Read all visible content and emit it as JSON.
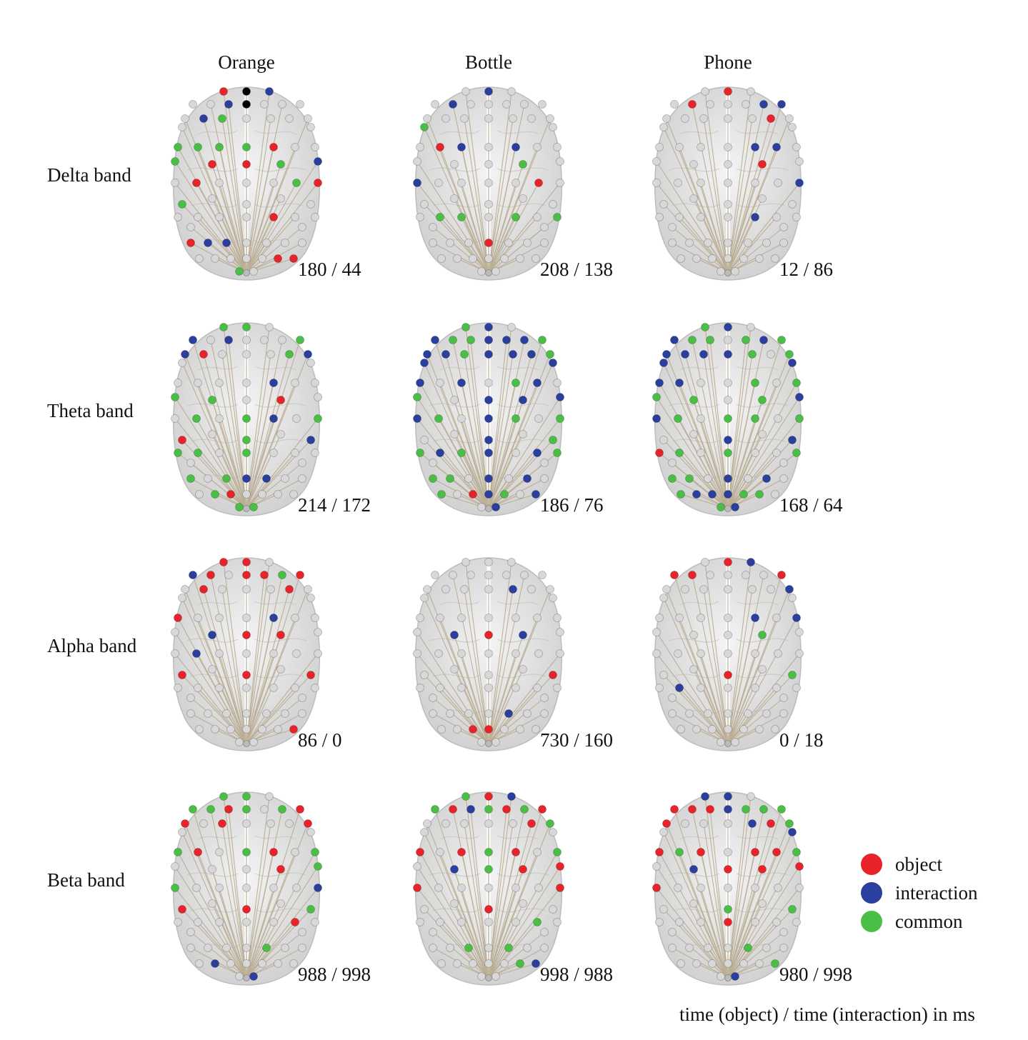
{
  "columns": [
    "Orange",
    "Bottle",
    "Phone"
  ],
  "rows": [
    "Delta band",
    "Theta band",
    "Alpha band",
    "Beta band"
  ],
  "timings": [
    [
      "180 / 44",
      "208 / 138",
      "12 / 86"
    ],
    [
      "214 / 172",
      "186 / 76",
      "168 / 64"
    ],
    [
      "86 / 0",
      "730 / 160",
      "0 / 18"
    ],
    [
      "988 / 998",
      "998 / 988",
      "980 / 998"
    ]
  ],
  "legend": {
    "items": [
      {
        "label": "object",
        "color": "#e8232a"
      },
      {
        "label": "interaction",
        "color": "#2b3f9e"
      },
      {
        "label": "common",
        "color": "#4bbf45"
      }
    ]
  },
  "footer": "time (object) / time (interaction) in ms",
  "colors": {
    "object": "#e8232a",
    "interaction": "#2b3f9e",
    "common": "#4bbf45",
    "neutral": "#d8d8d8",
    "brain": "#e3e3e3",
    "connection": "#b7a88a"
  },
  "brains": [
    [
      "RNBIIBNIIIIBGIIIIGGGGRIIIRIIIGRIIIIRIIRBBIIIIIIIIIRRGIGBIIGIIRRG",
      "IBIIBIIIIIIIIIIIIIRBIBIIBIIIIRIIGGIGIGIIIRIIIIIIIIIIIIIIGIIIIIIG",
      "IRIIRIIIBBIIIIIRIIIIIBBIIIIIIIBIIIIBIIIIIIIIIIIIIIIIIIIIIIIIIIIR"
    ],
    [
      "GGIBIBIIIGBRIIIGBIIIIBIIIGIGBIGGGIGIIIGIGBBIIIGRIIIIGGGIIIRBGIGR",
      "GBIBGGBBBGBBGBBBGBIBIGBIBGIBGIGGBGBIBGGGIBIBIGIRBGIBIBGBBBIGBBIB",
      "GBIBGGIGBGBBBBGIGBBIIGIGBGIGGIGRGIGIIGGGIBIBIGBBBGGIGBGBBBIBBIGG"
    ],
    [
      "RRIBRIRRGRIRIIIRIRIIIBIIIBIIIIIIIIIIIIIIIIIIIIIIIIIRIIIIIIRRRRBR",
      "IIIIIIIIIIIIIIBIIIIIIIIIIIIIIIIIIIIIIIIIIIBIIIIRRIIIIIIIIIIRIRBB",
      "IRBRRIIIIRIIIIIIBIIIIBIBIIIIIIIIBIIIIIIIIIIIIIIIIIIIIIIIIIIGRIIG"
    ],
    [
      "GGIGGRGIGRRIRIIIRGRIGRIGGIIIIIBIIIIIRIIIIIGIIIBIIIIIIBIGIIRGRIIR",
      "GRBGRBGRGRIIIIIRGRIRGRIGRIIIIIRIIIIIGIIIGIGIIIIIIIGBIIIRIIIIRGBR",
      "BBIRRRBGGGRIIIBRGRGRIRRGRIIIIIIIIIRIIIIIIIGIIIIIIIIGIBIRIBIGGRBR"
    ]
  ]
}
